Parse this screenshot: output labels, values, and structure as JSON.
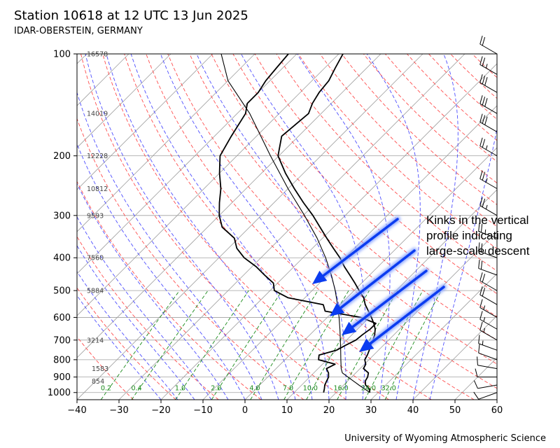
{
  "header": {
    "title": "Station 10618 at 12 UTC 13 Jun 2025",
    "subtitle": "IDAR-OBERSTEIN, GERMANY"
  },
  "footer": {
    "credit": "University of Wyoming Atmospheric Science"
  },
  "annotation": {
    "text": "Kinks in the vertical\nprofile indicating\nlarge-scale descent",
    "arrow_color": "#0b3cf0"
  },
  "colors": {
    "dry_adiabat": "#ff4d4d",
    "moist_adiabat": "#4d4dff",
    "mixing_ratio": "#1a8a1a",
    "isotherm": "#a0a0a0",
    "profile": "#000000"
  },
  "chart_data": {
    "type": "line",
    "subtype": "skew-T log-P",
    "xlabel": "",
    "ylabel": "",
    "xlim": [
      -40,
      60
    ],
    "ylim": [
      1050,
      100
    ],
    "y_scale": "log",
    "x_ticks": [
      -40,
      -30,
      -20,
      -10,
      0,
      10,
      20,
      30,
      40,
      50,
      60
    ],
    "y_ticks": [
      100,
      200,
      300,
      400,
      500,
      600,
      700,
      800,
      900,
      1000
    ],
    "grid": true,
    "height_labels": [
      {
        "p": 100,
        "text": "16578"
      },
      {
        "p": 150,
        "text": "14019"
      },
      {
        "p": 200,
        "text": "12228"
      },
      {
        "p": 250,
        "text": "10812"
      },
      {
        "p": 300,
        "text": "9593"
      },
      {
        "p": 400,
        "text": "7560"
      },
      {
        "p": 500,
        "text": "5884"
      },
      {
        "p": 700,
        "text": "3214"
      },
      {
        "p": 850,
        "text": "1583"
      },
      {
        "p": 925,
        "text": "854"
      }
    ],
    "mixing_ratio_labels": [
      "0.2",
      "0.4",
      "1.0",
      "2.0",
      "4.0",
      "7.0",
      "10.0",
      "16.0",
      "24.0",
      "32.0"
    ],
    "series": [
      {
        "role": "temperature",
        "p": [
          1000,
          975,
          950,
          925,
          900,
          875,
          850,
          825,
          800,
          775,
          750,
          725,
          700,
          675,
          650,
          625,
          600,
          575,
          550,
          525,
          500,
          475,
          450,
          425,
          400,
          375,
          350,
          325,
          300,
          275,
          250,
          225,
          200,
          175,
          150,
          140,
          130,
          120,
          110,
          100
        ],
        "values": [
          28.0,
          27.0,
          25.2,
          24.2,
          23.8,
          23.0,
          20.8,
          20.3,
          19.0,
          18.5,
          17.8,
          17.0,
          16.3,
          15.4,
          14.2,
          12.5,
          10.5,
          8.3,
          6.0,
          4.0,
          1.2,
          -1.6,
          -4.7,
          -8.0,
          -11.2,
          -15.0,
          -19.0,
          -23.2,
          -27.7,
          -33.0,
          -38.5,
          -44.3,
          -50.2,
          -54.0,
          -53.0,
          -54.5,
          -55.5,
          -56.0,
          -57.5,
          -59.0
        ]
      },
      {
        "role": "dewpoint",
        "p": [
          1000,
          975,
          950,
          925,
          900,
          875,
          850,
          825,
          800,
          775,
          750,
          725,
          700,
          675,
          650,
          625,
          600,
          575,
          550,
          525,
          500,
          475,
          450,
          425,
          400,
          375,
          350,
          325,
          300,
          275,
          250,
          225,
          200,
          175,
          150,
          140,
          130,
          120,
          110,
          100
        ],
        "values": [
          17.0,
          16.3,
          15.5,
          15.0,
          14.5,
          13.5,
          12.0,
          13.0,
          8.0,
          7.0,
          10.0,
          11.0,
          12.2,
          12.5,
          13.0,
          13.0,
          8.0,
          -2.0,
          -4.0,
          -14.0,
          -19.0,
          -21.0,
          -25.0,
          -29.0,
          -34.0,
          -38.0,
          -41.0,
          -46.5,
          -50.0,
          -53.0,
          -56.0,
          -60.0,
          -64.0,
          -66.0,
          -68.0,
          -70.0,
          -70.0,
          -71.0,
          -71.5,
          -72.0
        ]
      },
      {
        "role": "parcel",
        "p": [
          1000,
          950,
          925,
          900,
          875,
          850,
          800,
          750,
          700,
          650,
          600,
          550,
          500,
          450,
          400,
          350,
          300,
          250,
          200,
          150,
          120,
          100
        ],
        "values": [
          28.0,
          23.6,
          21.4,
          19.1,
          16.8,
          15.5,
          13.3,
          11.0,
          8.5,
          5.8,
          2.8,
          -0.6,
          -4.5,
          -9.1,
          -14.6,
          -21.3,
          -29.7,
          -40.0,
          -52.0,
          -67.0,
          -80.0,
          -88.0
        ]
      }
    ],
    "wind_barbs": [
      {
        "p": 1000,
        "dir": 250,
        "kt": 10
      },
      {
        "p": 950,
        "dir": 260,
        "kt": 10
      },
      {
        "p": 900,
        "dir": 270,
        "kt": 10
      },
      {
        "p": 850,
        "dir": 280,
        "kt": 10
      },
      {
        "p": 800,
        "dir": 290,
        "kt": 10
      },
      {
        "p": 750,
        "dir": 290,
        "kt": 15
      },
      {
        "p": 700,
        "dir": 300,
        "kt": 15
      },
      {
        "p": 650,
        "dir": 300,
        "kt": 15
      },
      {
        "p": 600,
        "dir": 300,
        "kt": 15
      },
      {
        "p": 550,
        "dir": 300,
        "kt": 20
      },
      {
        "p": 500,
        "dir": 300,
        "kt": 20
      },
      {
        "p": 450,
        "dir": 290,
        "kt": 20
      },
      {
        "p": 400,
        "dir": 290,
        "kt": 25
      },
      {
        "p": 350,
        "dir": 290,
        "kt": 25
      },
      {
        "p": 300,
        "dir": 300,
        "kt": 25
      },
      {
        "p": 250,
        "dir": 300,
        "kt": 25
      },
      {
        "p": 200,
        "dir": 300,
        "kt": 25
      },
      {
        "p": 170,
        "dir": 300,
        "kt": 30
      },
      {
        "p": 150,
        "dir": 300,
        "kt": 30
      },
      {
        "p": 130,
        "dir": 300,
        "kt": 30
      },
      {
        "p": 115,
        "dir": 300,
        "kt": 25
      },
      {
        "p": 100,
        "dir": 300,
        "kt": 20
      }
    ]
  }
}
